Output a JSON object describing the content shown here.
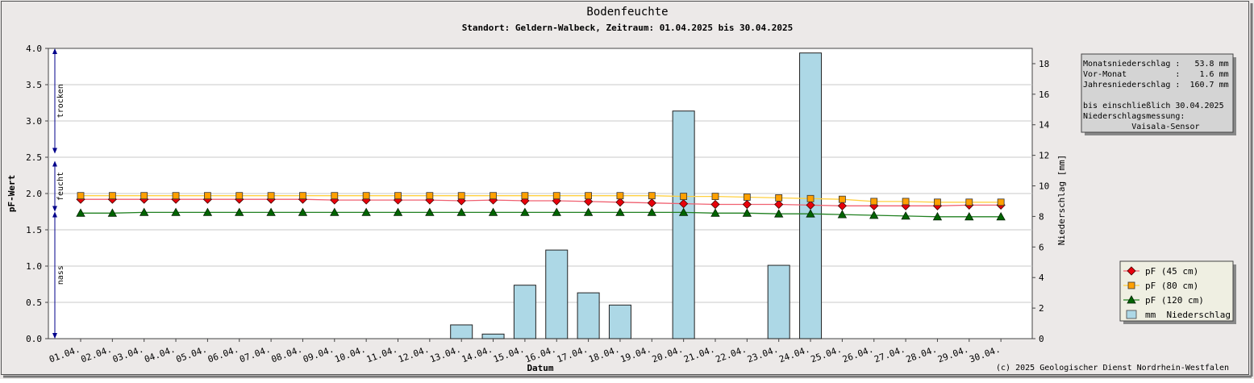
{
  "chart_data": {
    "type": "bar+line",
    "title": "Bodenfeuchte",
    "subtitle": "Standort: Geldern-Walbeck, Zeitraum: 01.04.2025 bis 30.04.2025",
    "xlabel": "Datum",
    "ylabel_left": "pF-Wert",
    "ylabel_right": "Niederschlag [mm]",
    "ylim_left": [
      0,
      4
    ],
    "ylim_right": [
      0,
      19
    ],
    "yticks_left": [
      "0.0",
      "0.5",
      "1.0",
      "1.5",
      "2.0",
      "2.5",
      "3.0",
      "3.5",
      "4.0"
    ],
    "yticks_right": [
      "0",
      "2",
      "4",
      "6",
      "8",
      "10",
      "12",
      "14",
      "16",
      "18"
    ],
    "grid": true,
    "legend_position": "bottom-right",
    "categories": [
      "01.04.",
      "02.04.",
      "03.04.",
      "04.04.",
      "05.04.",
      "06.04.",
      "07.04.",
      "08.04.",
      "09.04.",
      "10.04.",
      "11.04.",
      "12.04.",
      "13.04.",
      "14.04.",
      "15.04.",
      "16.04.",
      "17.04.",
      "18.04.",
      "19.04.",
      "20.04.",
      "21.04.",
      "22.04.",
      "23.04.",
      "24.04.",
      "25.04.",
      "26.04.",
      "27.04.",
      "28.04.",
      "29.04.",
      "30.04."
    ],
    "zones": [
      {
        "label": "trocken",
        "from": 2.55,
        "to": 4.0
      },
      {
        "label": "feucht",
        "from": 1.75,
        "to": 2.45
      },
      {
        "label": "nass",
        "from": 0.0,
        "to": 1.75
      }
    ],
    "series": [
      {
        "name": "pF (45 cm)",
        "kind": "line",
        "axis": "left",
        "color": "#e8000b",
        "line_color": "#f06070",
        "marker": "diamond",
        "values": [
          1.92,
          1.92,
          1.92,
          1.92,
          1.92,
          1.92,
          1.92,
          1.92,
          1.91,
          1.91,
          1.91,
          1.91,
          1.9,
          1.91,
          1.9,
          1.9,
          1.89,
          1.88,
          1.87,
          1.86,
          1.85,
          1.85,
          1.85,
          1.84,
          1.83,
          1.83,
          1.83,
          1.83,
          1.84,
          1.84
        ]
      },
      {
        "name": "pF (80 cm)",
        "kind": "line",
        "axis": "left",
        "color": "#ffa000",
        "line_color": "#ffd040",
        "marker": "square",
        "values": [
          1.97,
          1.97,
          1.97,
          1.97,
          1.97,
          1.97,
          1.97,
          1.97,
          1.97,
          1.97,
          1.97,
          1.97,
          1.97,
          1.97,
          1.97,
          1.97,
          1.97,
          1.97,
          1.97,
          1.96,
          1.96,
          1.95,
          1.94,
          1.93,
          1.92,
          1.89,
          1.89,
          1.88,
          1.88,
          1.88
        ]
      },
      {
        "name": "pF (120 cm)",
        "kind": "line",
        "axis": "left",
        "color": "#006400",
        "line_color": "#208020",
        "marker": "triangle",
        "values": [
          1.73,
          1.73,
          1.74,
          1.74,
          1.74,
          1.74,
          1.74,
          1.74,
          1.74,
          1.74,
          1.74,
          1.74,
          1.74,
          1.74,
          1.74,
          1.74,
          1.74,
          1.74,
          1.74,
          1.74,
          1.73,
          1.73,
          1.72,
          1.72,
          1.71,
          1.7,
          1.69,
          1.68,
          1.68,
          1.68
        ]
      },
      {
        "name": "mm  Niederschlag",
        "kind": "bar",
        "axis": "right",
        "color": "#add8e6",
        "values": [
          0,
          0,
          0,
          0,
          0,
          0,
          0,
          0,
          0,
          0,
          0,
          0,
          0.9,
          0.3,
          3.5,
          5.8,
          3.0,
          2.2,
          0,
          14.9,
          0,
          0,
          4.8,
          18.7,
          0,
          0,
          0,
          0,
          0,
          0
        ]
      }
    ]
  },
  "infobox": {
    "lines": [
      "Monatsniederschlag :   53.8 mm",
      "Vor-Monat          :    1.6 mm",
      "Jahresniederschlag :  160.7 mm",
      "",
      "bis einschließlich 30.04.2025",
      "Niederschlagsmessung:",
      "          Vaisala-Sensor"
    ]
  },
  "copyright": "(c) 2025 Geologischer Dienst Nordrhein-Westfalen",
  "colors": {
    "frame_bg": "#ece9e8",
    "plot_bg": "#ffffff",
    "grid": "#c8c8c8",
    "zone_arrow": "#00008b",
    "infobox_bg": "#d4d4d4",
    "legend_bg": "#efefe2"
  }
}
